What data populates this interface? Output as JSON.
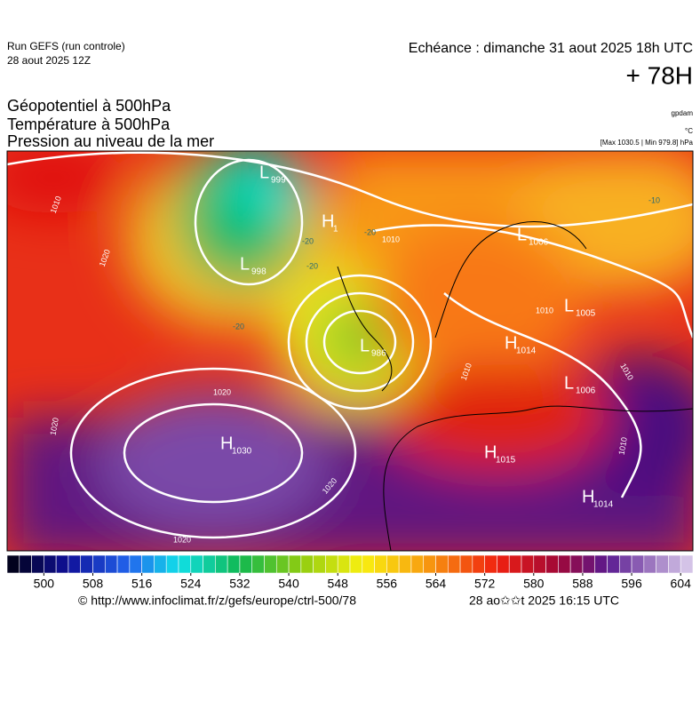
{
  "header": {
    "run": "Run GEFS (run controle)",
    "run_date": "28 aout 2025 12Z",
    "valid": "Echéance : dimanche 31 aout 2025 18h UTC",
    "lead": "+ 78H"
  },
  "titles": [
    "Géopotentiel à 500hPa",
    "Température à 500hPa",
    "Pression au niveau de la mer"
  ],
  "units": [
    "gpdam",
    "°C",
    "[Max 1030.5 | Min 979.8] hPa"
  ],
  "centers": [
    {
      "type": "L",
      "value": "999"
    },
    {
      "type": "H",
      "value": "1"
    },
    {
      "type": "L",
      "value": "998"
    },
    {
      "type": "L",
      "value": "1006"
    },
    {
      "type": "L",
      "value": "1005"
    },
    {
      "type": "H",
      "value": "1014"
    },
    {
      "type": "L",
      "value": "986"
    },
    {
      "type": "L",
      "value": "1006"
    },
    {
      "type": "H",
      "value": "1030"
    },
    {
      "type": "H",
      "value": "1015"
    },
    {
      "type": "H",
      "value": "1014"
    }
  ],
  "isobar_labels": [
    "1010",
    "1020",
    "1020",
    "1020",
    "1020",
    "1020",
    "1010",
    "1010",
    "1010",
    "1010",
    "1010"
  ],
  "temperature_labels": [
    "-20",
    "-20",
    "-20",
    "-10",
    "-20"
  ],
  "colorbar": {
    "lim": [
      494,
      606
    ],
    "step": 2,
    "ticks": [
      500,
      508,
      516,
      524,
      532,
      540,
      548,
      556,
      564,
      572,
      580,
      588,
      596,
      604
    ],
    "stops": [
      {
        "at": 494,
        "color": "#000010"
      },
      {
        "at": 504,
        "color": "#10109a"
      },
      {
        "at": 514,
        "color": "#2266ee"
      },
      {
        "at": 522,
        "color": "#10e0e8"
      },
      {
        "at": 532,
        "color": "#10b850"
      },
      {
        "at": 542,
        "color": "#90cc10"
      },
      {
        "at": 552,
        "color": "#f8f010"
      },
      {
        "at": 562,
        "color": "#f8a010"
      },
      {
        "at": 574,
        "color": "#f02010"
      },
      {
        "at": 584,
        "color": "#a00838"
      },
      {
        "at": 592,
        "color": "#5a1a90"
      },
      {
        "at": 606,
        "color": "#ddd0ee"
      }
    ]
  },
  "footer": {
    "source": "© http://www.infoclimat.fr/z/gefs/europe/ctrl-500/78",
    "generated": "28 ao✩✩t 2025 16:15 UTC"
  }
}
